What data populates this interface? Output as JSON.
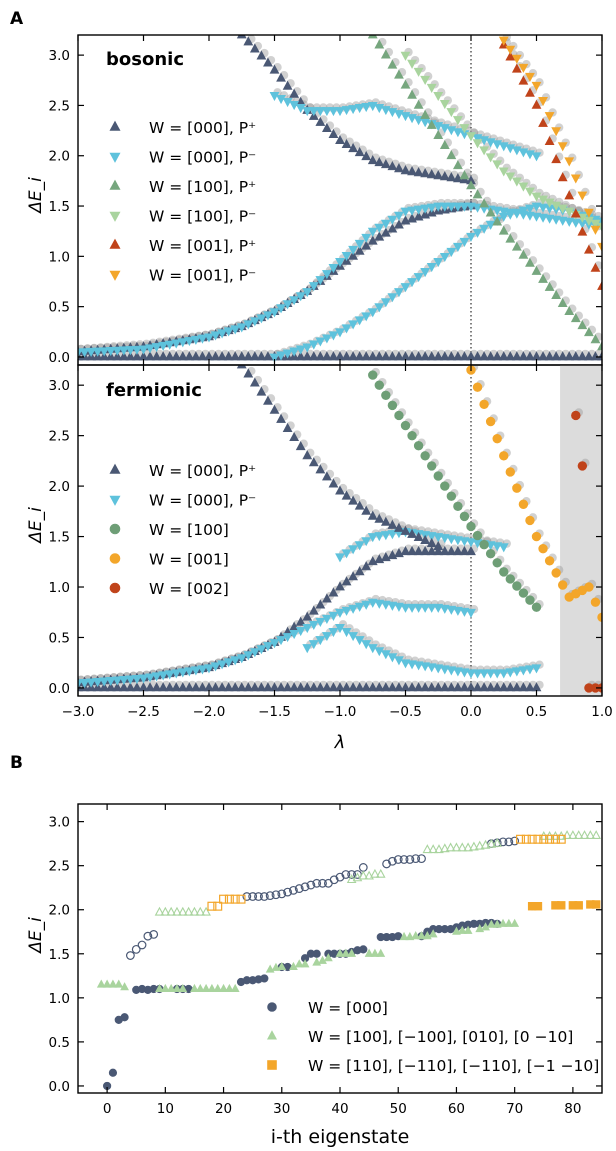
{
  "chart_data": [
    {
      "panel_label": "A",
      "type": "scatter",
      "title": "bosonic",
      "xlabel": "",
      "ylabel": "ΔE_i",
      "xlim": [
        -3.0,
        1.0
      ],
      "ylim": [
        -0.08,
        3.2
      ],
      "xticks": [
        -3.0,
        -2.5,
        -2.0,
        -1.5,
        -1.0,
        -0.5,
        0.0,
        0.5,
        1.0
      ],
      "yticks": [
        0.0,
        0.5,
        1.0,
        1.5,
        2.0,
        2.5,
        3.0
      ],
      "xtick_labels_shown": false,
      "vline_x": 0.0,
      "legend_position": "center-left",
      "legend": [
        {
          "label": "W = [000],  P⁺",
          "marker": "triangle-up",
          "color": "#4a5874"
        },
        {
          "label": "W = [000],  P⁻",
          "marker": "triangle-down",
          "color": "#5ec2dc"
        },
        {
          "label": "W = [100],  P⁺",
          "marker": "triangle-up",
          "color": "#76a67e"
        },
        {
          "label": "W = [100],  P⁻",
          "marker": "triangle-down",
          "color": "#a9d49e"
        },
        {
          "label": "W = [001],  P⁺",
          "marker": "triangle-up",
          "color": "#c0431a"
        },
        {
          "label": "W = [001],  P⁻",
          "marker": "triangle-down",
          "color": "#f3a62a"
        }
      ],
      "series": [
        {
          "marker": "triangle-up",
          "color": "#4a5874",
          "x": [
            -3.0,
            -2.5,
            -2.0,
            -1.5,
            -1.0,
            -0.5,
            0.0,
            0.5,
            1.0
          ],
          "y": [
            0.0,
            0.0,
            0.0,
            0.0,
            0.0,
            0.0,
            0.0,
            0.0,
            0.0
          ]
        },
        {
          "marker": "triangle-up",
          "color": "#4a5874",
          "x": [
            -3.0,
            -2.5,
            -2.0,
            -1.75,
            -1.5,
            -1.25,
            -1.0,
            -0.75,
            -0.5,
            -0.25,
            0.0
          ],
          "y": [
            0.05,
            0.1,
            0.2,
            0.3,
            0.45,
            0.65,
            0.9,
            1.15,
            1.35,
            1.45,
            1.5
          ]
        },
        {
          "marker": "triangle-down",
          "color": "#5ec2dc",
          "x": [
            -3.0,
            -2.5,
            -2.0,
            -1.75,
            -1.5,
            -1.25,
            -1.0,
            -0.75,
            -0.5,
            -0.25,
            0.0,
            0.25,
            0.5,
            0.75,
            1.0
          ],
          "y": [
            0.05,
            0.08,
            0.2,
            0.3,
            0.45,
            0.65,
            0.95,
            1.25,
            1.45,
            1.5,
            1.5,
            1.45,
            1.4,
            1.35,
            1.3
          ]
        },
        {
          "marker": "triangle-down",
          "color": "#5ec2dc",
          "x": [
            -1.5,
            -1.25,
            -1.0,
            -0.75,
            -0.5,
            -0.25,
            0.0,
            0.25,
            0.5,
            0.75,
            1.0
          ],
          "y": [
            0.0,
            0.1,
            0.25,
            0.45,
            0.7,
            0.95,
            1.2,
            1.4,
            1.5,
            1.45,
            1.35
          ]
        },
        {
          "marker": "triangle-up",
          "color": "#4a5874",
          "x": [
            -1.75,
            -1.5,
            -1.25,
            -1.0,
            -0.75,
            -0.5,
            -0.25,
            0.0
          ],
          "y": [
            3.2,
            2.85,
            2.45,
            2.15,
            1.95,
            1.85,
            1.8,
            1.75
          ]
        },
        {
          "marker": "triangle-down",
          "color": "#5ec2dc",
          "x": [
            -1.5,
            -1.25,
            -1.0,
            -0.75,
            -0.5,
            -0.25,
            0.0,
            0.25,
            0.5
          ],
          "y": [
            2.6,
            2.45,
            2.45,
            2.5,
            2.4,
            2.3,
            2.2,
            2.1,
            2.0
          ]
        },
        {
          "marker": "triangle-up",
          "color": "#76a67e",
          "x": [
            -0.75,
            -0.5,
            -0.25,
            0.0,
            0.25,
            0.5,
            0.75,
            1.0
          ],
          "y": [
            3.2,
            2.7,
            2.2,
            1.7,
            1.25,
            0.85,
            0.45,
            0.1
          ]
        },
        {
          "marker": "triangle-down",
          "color": "#a9d49e",
          "x": [
            -0.5,
            -0.25,
            0.0,
            0.25,
            0.5,
            0.75,
            1.0
          ],
          "y": [
            3.0,
            2.6,
            2.2,
            1.85,
            1.6,
            1.45,
            1.3
          ]
        },
        {
          "marker": "triangle-up",
          "color": "#c0431a",
          "x": [
            0.25,
            0.5,
            0.75,
            1.0
          ],
          "y": [
            3.1,
            2.5,
            1.6,
            0.7
          ]
        },
        {
          "marker": "triangle-down",
          "color": "#f3a62a",
          "x": [
            0.25,
            0.5,
            0.75,
            1.0
          ],
          "y": [
            3.15,
            2.7,
            1.95,
            1.1
          ]
        }
      ]
    },
    {
      "type": "scatter",
      "title": "fermionic",
      "xlabel": "λ",
      "ylabel": "ΔE_i",
      "xlim": [
        -3.0,
        1.0
      ],
      "ylim": [
        -0.08,
        3.2
      ],
      "xticks": [
        -3.0,
        -2.5,
        -2.0,
        -1.5,
        -1.0,
        -0.5,
        0.0,
        0.5,
        1.0
      ],
      "xtick_labels": [
        "−3.0",
        "−2.5",
        "−2.0",
        "−1.5",
        "−1.0",
        "−0.5",
        "0.0",
        "0.5",
        "1.0"
      ],
      "yticks": [
        0.0,
        0.5,
        1.0,
        1.5,
        2.0,
        2.5,
        3.0
      ],
      "vline_x": 0.0,
      "shaded_x_range": [
        0.68,
        1.0
      ],
      "legend_position": "center-left",
      "legend": [
        {
          "label": "W = [000],  P⁺",
          "marker": "triangle-up",
          "color": "#4a5874"
        },
        {
          "label": "W = [000],  P⁻",
          "marker": "triangle-down",
          "color": "#5ec2dc"
        },
        {
          "label": "W = [100]",
          "marker": "circle",
          "color": "#6e9e76"
        },
        {
          "label": "W = [001]",
          "marker": "circle",
          "color": "#f3a62a"
        },
        {
          "label": "W = [002]",
          "marker": "circle",
          "color": "#c0431a"
        }
      ],
      "series": [
        {
          "marker": "triangle-up",
          "color": "#4a5874",
          "x": [
            -3.0,
            -2.5,
            -2.0,
            -1.5,
            -1.0,
            -0.5,
            0.0,
            0.5
          ],
          "y": [
            0.0,
            0.0,
            0.0,
            0.0,
            0.0,
            0.0,
            0.0,
            0.0
          ]
        },
        {
          "marker": "triangle-up",
          "color": "#4a5874",
          "x": [
            -3.0,
            -2.5,
            -2.0,
            -1.75,
            -1.5,
            -1.25,
            -1.0,
            -0.75,
            -0.5,
            -0.25,
            0.0
          ],
          "y": [
            0.05,
            0.1,
            0.2,
            0.3,
            0.45,
            0.7,
            1.0,
            1.25,
            1.35,
            1.35,
            1.35
          ]
        },
        {
          "marker": "triangle-down",
          "color": "#5ec2dc",
          "x": [
            -3.0,
            -2.5,
            -2.0,
            -1.75,
            -1.5,
            -1.25,
            -1.0,
            -0.75,
            -0.5,
            -0.25,
            0.0
          ],
          "y": [
            0.05,
            0.1,
            0.2,
            0.3,
            0.45,
            0.6,
            0.75,
            0.85,
            0.8,
            0.8,
            0.75
          ]
        },
        {
          "marker": "triangle-down",
          "color": "#5ec2dc",
          "x": [
            -1.25,
            -1.0,
            -0.75,
            -0.5,
            -0.25,
            0.0,
            0.25,
            0.5
          ],
          "y": [
            0.4,
            0.6,
            0.4,
            0.25,
            0.2,
            0.15,
            0.15,
            0.2
          ]
        },
        {
          "marker": "triangle-down",
          "color": "#5ec2dc",
          "x": [
            -1.0,
            -0.75,
            -0.5,
            -0.25,
            0.0,
            0.25
          ],
          "y": [
            1.3,
            1.5,
            1.55,
            1.5,
            1.45,
            1.4
          ]
        },
        {
          "marker": "triangle-up",
          "color": "#4a5874",
          "x": [
            -1.75,
            -1.5,
            -1.25,
            -1.0,
            -0.75,
            -0.5,
            -0.25
          ],
          "y": [
            3.2,
            2.75,
            2.3,
            1.95,
            1.7,
            1.55,
            1.4
          ]
        },
        {
          "marker": "circle",
          "color": "#6e9e76",
          "x": [
            -0.75,
            -0.5,
            -0.25,
            0.0,
            0.25,
            0.5
          ],
          "y": [
            3.1,
            2.6,
            2.1,
            1.6,
            1.15,
            0.8
          ]
        },
        {
          "marker": "circle",
          "color": "#f3a62a",
          "x": [
            0.0,
            0.25,
            0.5,
            0.75,
            0.9,
            1.0
          ],
          "y": [
            3.15,
            2.3,
            1.5,
            0.9,
            1.0,
            0.7
          ]
        },
        {
          "marker": "circle",
          "color": "#c0431a",
          "x": [
            0.8,
            0.85,
            0.9,
            0.95,
            1.0
          ],
          "y": [
            2.7,
            2.2,
            0.0,
            0.0,
            0.0
          ]
        }
      ]
    },
    {
      "panel_label": "B",
      "type": "scatter",
      "xlabel": "i-th eigenstate",
      "ylabel": "ΔE_i",
      "xlim": [
        -5,
        85
      ],
      "ylim": [
        -0.08,
        3.2
      ],
      "xticks": [
        0,
        10,
        20,
        30,
        40,
        50,
        60,
        70,
        80
      ],
      "yticks": [
        0.0,
        0.5,
        1.0,
        1.5,
        2.0,
        2.5,
        3.0
      ],
      "legend_position": "lower-right",
      "legend": [
        {
          "label": "W = [000]",
          "marker": "circle",
          "color": "#4a5874"
        },
        {
          "label": "W = [100], [−100], [010], [0 −10]",
          "marker": "triangle-up",
          "color": "#a9d49e"
        },
        {
          "label": "W = [110], [−110], [−110], [−1 −10]",
          "marker": "square",
          "color": "#f3a62a"
        }
      ],
      "series": [
        {
          "name": "W = [000] (filled)",
          "marker": "circle",
          "color": "#4a5874",
          "filled": true,
          "x": [
            0,
            1,
            2,
            3,
            5,
            6,
            7,
            8,
            9,
            12,
            13,
            14,
            23,
            24,
            25,
            26,
            27,
            30,
            31,
            34,
            35,
            36,
            38,
            39,
            40,
            41,
            42,
            43,
            44,
            47,
            48,
            49,
            50,
            54,
            55,
            56,
            57,
            58,
            59,
            60,
            61,
            62,
            63,
            64,
            65,
            66,
            67,
            73
          ],
          "y": [
            0.0,
            0.15,
            0.75,
            0.78,
            1.09,
            1.1,
            1.09,
            1.1,
            1.1,
            1.1,
            1.1,
            1.1,
            1.18,
            1.2,
            1.2,
            1.21,
            1.22,
            1.35,
            1.35,
            1.45,
            1.5,
            1.5,
            1.5,
            1.5,
            1.5,
            1.5,
            1.52,
            1.54,
            1.55,
            1.69,
            1.69,
            1.69,
            1.7,
            1.7,
            1.75,
            1.78,
            1.78,
            1.78,
            1.78,
            1.8,
            1.82,
            1.83,
            1.84,
            1.84,
            1.85,
            1.85,
            1.84,
            2.04
          ]
        },
        {
          "name": "W = [000] (open)",
          "marker": "circle",
          "color": "#4a5874",
          "filled": false,
          "x": [
            4,
            5,
            6,
            7,
            8,
            24,
            25,
            26,
            27,
            28,
            29,
            30,
            31,
            32,
            33,
            34,
            35,
            36,
            37,
            38,
            39,
            40,
            41,
            42,
            43,
            44,
            48,
            49,
            50,
            51,
            52,
            53,
            54,
            66,
            67,
            68,
            69,
            70
          ],
          "y": [
            1.48,
            1.55,
            1.6,
            1.7,
            1.72,
            2.15,
            2.15,
            2.15,
            2.15,
            2.16,
            2.17,
            2.18,
            2.2,
            2.22,
            2.24,
            2.26,
            2.28,
            2.3,
            2.3,
            2.3,
            2.34,
            2.37,
            2.4,
            2.4,
            2.4,
            2.48,
            2.52,
            2.55,
            2.57,
            2.57,
            2.57,
            2.58,
            2.58,
            2.75,
            2.76,
            2.77,
            2.77,
            2.78
          ]
        },
        {
          "name": "W = [100] (filled)",
          "marker": "triangle-up",
          "color": "#a9d49e",
          "filled": true,
          "x": [
            -1,
            0,
            1,
            2,
            3,
            9,
            10,
            11,
            12,
            13,
            15,
            16,
            17,
            18,
            19,
            20,
            21,
            22,
            28,
            29,
            30,
            32,
            33,
            34,
            36,
            37,
            38,
            40,
            41,
            42,
            45,
            46,
            47,
            51,
            52,
            53,
            54,
            55,
            56,
            60,
            61,
            62,
            64,
            65,
            66,
            67,
            68,
            69,
            70
          ],
          "y": [
            1.15,
            1.15,
            1.15,
            1.15,
            1.12,
            1.1,
            1.1,
            1.1,
            1.1,
            1.1,
            1.1,
            1.1,
            1.1,
            1.1,
            1.1,
            1.1,
            1.1,
            1.1,
            1.32,
            1.34,
            1.35,
            1.35,
            1.38,
            1.38,
            1.4,
            1.42,
            1.45,
            1.5,
            1.5,
            1.5,
            1.5,
            1.5,
            1.5,
            1.69,
            1.69,
            1.7,
            1.7,
            1.7,
            1.72,
            1.75,
            1.76,
            1.76,
            1.78,
            1.8,
            1.83,
            1.83,
            1.84,
            1.84,
            1.84
          ]
        },
        {
          "name": "W = [100] (open)",
          "marker": "triangle-up",
          "color": "#a9d49e",
          "filled": false,
          "x": [
            9,
            10,
            11,
            12,
            13,
            14,
            15,
            16,
            17,
            42,
            43,
            44,
            45,
            46,
            47,
            55,
            56,
            57,
            58,
            59,
            60,
            61,
            62,
            63,
            64,
            65,
            66,
            67,
            75,
            76,
            77,
            78,
            79,
            80,
            81,
            82,
            83,
            84
          ],
          "y": [
            1.97,
            1.97,
            1.97,
            1.97,
            1.97,
            1.97,
            1.97,
            1.97,
            1.97,
            2.34,
            2.36,
            2.38,
            2.38,
            2.4,
            2.4,
            2.68,
            2.68,
            2.68,
            2.69,
            2.7,
            2.7,
            2.7,
            2.7,
            2.71,
            2.72,
            2.73,
            2.74,
            2.75,
            2.83,
            2.83,
            2.83,
            2.83,
            2.84,
            2.84,
            2.84,
            2.84,
            2.84,
            2.84
          ]
        },
        {
          "name": "W = [110] (filled)",
          "marker": "square",
          "color": "#f3a62a",
          "filled": true,
          "x": [
            73,
            74,
            77,
            78,
            80,
            81,
            83,
            84
          ],
          "y": [
            2.04,
            2.04,
            2.05,
            2.05,
            2.05,
            2.05,
            2.06,
            2.06
          ]
        },
        {
          "name": "W = [110] (open)",
          "marker": "square",
          "color": "#f3a62a",
          "filled": false,
          "x": [
            18,
            19,
            20,
            21,
            22,
            23,
            71,
            72,
            73,
            74,
            75,
            76,
            77,
            78
          ],
          "y": [
            2.04,
            2.04,
            2.12,
            2.12,
            2.12,
            2.12,
            2.8,
            2.8,
            2.8,
            2.8,
            2.8,
            2.8,
            2.8,
            2.8
          ]
        }
      ]
    }
  ]
}
